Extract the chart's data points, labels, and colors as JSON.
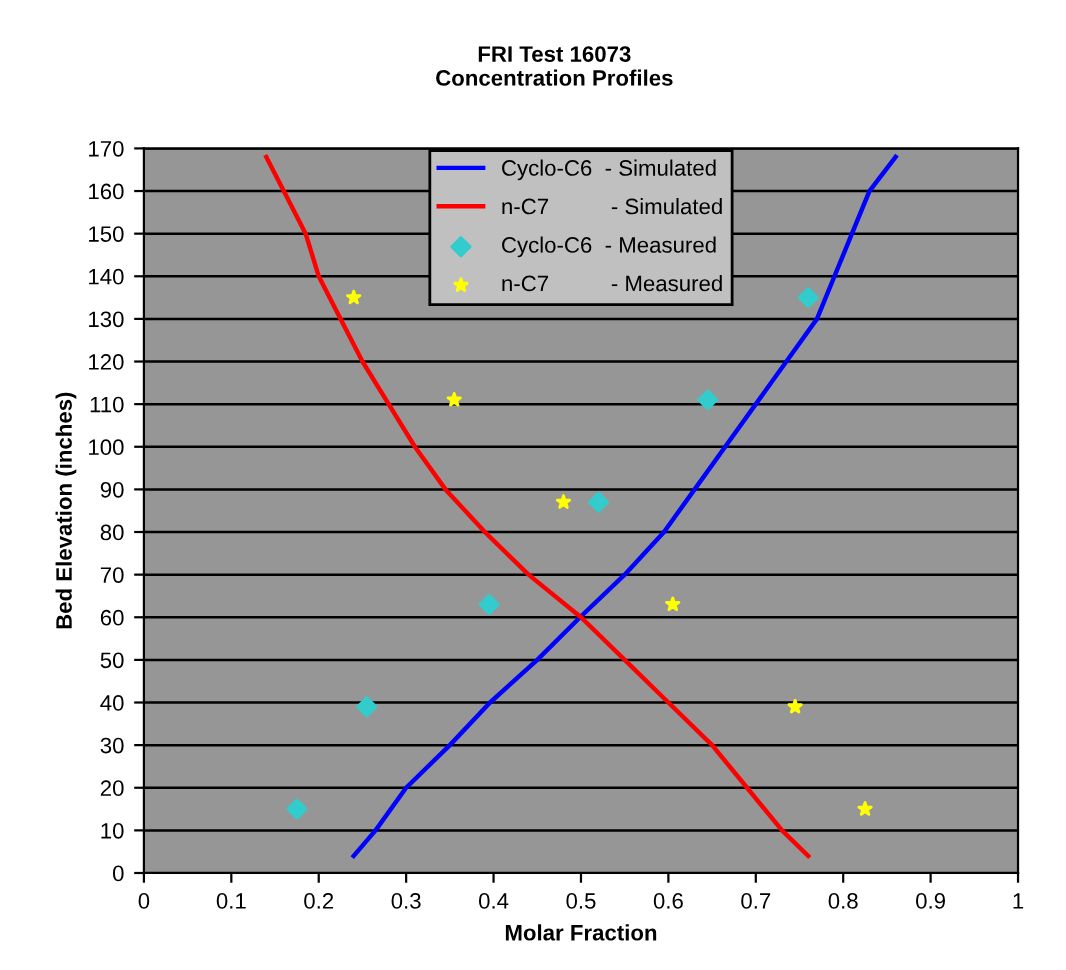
{
  "chart_data": {
    "type": "line",
    "title": "FRI Test 16073\nConcentration Profiles",
    "xlabel": "Molar Fraction",
    "ylabel": "Bed Elevation (inches)",
    "xlim": [
      0,
      1
    ],
    "xticks": [
      0,
      0.1,
      0.2,
      0.3,
      0.4,
      0.5,
      0.6,
      0.7,
      0.8,
      0.9,
      1
    ],
    "ylim": [
      0,
      170
    ],
    "yticks": [
      0,
      10,
      20,
      30,
      40,
      50,
      60,
      70,
      80,
      90,
      100,
      110,
      120,
      130,
      140,
      150,
      160,
      170
    ],
    "grid": "y",
    "legend": "top",
    "series": [
      {
        "name": "Cyclo-C6  - Simulated",
        "color": "#0000ff",
        "marker": "none",
        "x": [
          0.24,
          0.265,
          0.3,
          0.35,
          0.396,
          0.45,
          0.499,
          0.55,
          0.595,
          0.63,
          0.665,
          0.7,
          0.735,
          0.77,
          0.79,
          0.81,
          0.83,
          0.86
        ],
        "values": [
          4,
          10,
          20,
          30,
          40,
          50,
          60,
          70,
          80,
          90,
          100,
          110,
          120,
          130,
          140,
          150,
          160,
          168
        ]
      },
      {
        "name": "n-C7          - Simulated",
        "color": "#ff0000",
        "marker": "none",
        "x": [
          0.76,
          0.73,
          0.69,
          0.65,
          0.6,
          0.55,
          0.5,
          0.44,
          0.39,
          0.345,
          0.31,
          0.28,
          0.25,
          0.225,
          0.2,
          0.185,
          0.16,
          0.14
        ],
        "values": [
          4,
          10,
          20,
          30,
          40,
          50,
          60,
          70,
          80,
          90,
          100,
          110,
          120,
          130,
          140,
          150,
          160,
          168
        ]
      },
      {
        "name": "Cyclo-C6  - Measured",
        "type": "scatter",
        "color": "#33cccc",
        "marker": "diamond",
        "x": [
          0.175,
          0.255,
          0.395,
          0.52,
          0.645,
          0.76
        ],
        "values": [
          15,
          39,
          63,
          87,
          111,
          135
        ]
      },
      {
        "name": "n-C7          - Measured",
        "type": "scatter",
        "color": "#ffff00",
        "marker": "star",
        "x": [
          0.825,
          0.745,
          0.605,
          0.48,
          0.355,
          0.24
        ],
        "values": [
          15,
          39,
          63,
          87,
          111,
          135
        ]
      }
    ]
  }
}
